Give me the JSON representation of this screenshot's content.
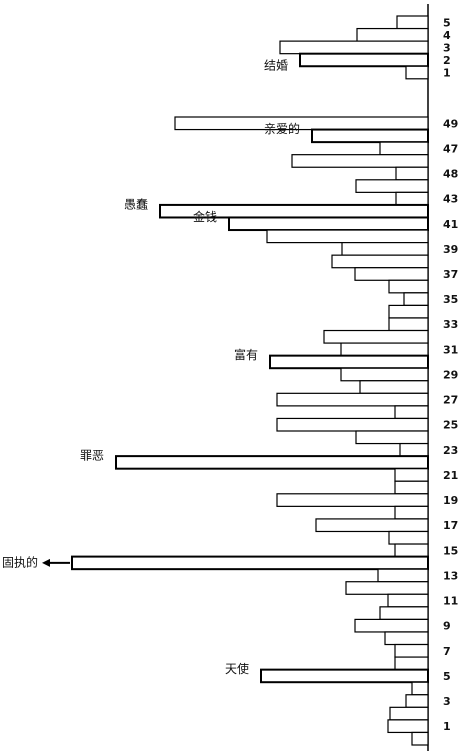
{
  "chart_data": [
    {
      "type": "bar",
      "orientation": "horizontal",
      "color": "#ffffff",
      "categories": [
        "5",
        "4",
        "3",
        "2",
        "1"
      ],
      "values": [
        31,
        71,
        148,
        128,
        22
      ],
      "annotations": [
        null,
        null,
        null,
        "结婚",
        null
      ]
    },
    {
      "type": "bar",
      "orientation": "horizontal",
      "color": "#ffffff",
      "categories": [
        "49",
        null,
        "47",
        null,
        "48",
        null,
        "43",
        null,
        "41",
        null,
        "39",
        null,
        "37",
        null,
        "35",
        null,
        "33",
        null,
        "31",
        null,
        "29",
        null,
        "27",
        null,
        "25",
        null,
        "23",
        null,
        "21",
        null,
        "19",
        null,
        "17",
        null,
        "15",
        null,
        "13",
        null,
        "11",
        null,
        "9",
        null,
        "7",
        null,
        "5",
        null,
        "3",
        null,
        "1",
        null
      ],
      "values": [
        253,
        116,
        48,
        136,
        32,
        72,
        32,
        268,
        199,
        161,
        86,
        96,
        73,
        39,
        24,
        39,
        39,
        104,
        87,
        158,
        87,
        68,
        151,
        33,
        151,
        72,
        28,
        312,
        33,
        33,
        151,
        33,
        112,
        39,
        33,
        356,
        50,
        82,
        40,
        48,
        73,
        43,
        33,
        33,
        167,
        16,
        22,
        38,
        40,
        16
      ],
      "annotations": [
        null,
        "亲爱的",
        null,
        null,
        null,
        null,
        null,
        "愚蠢",
        "金钱",
        null,
        null,
        null,
        null,
        null,
        null,
        null,
        null,
        null,
        null,
        "富有",
        null,
        null,
        null,
        null,
        null,
        null,
        null,
        "罪恶",
        null,
        null,
        null,
        null,
        null,
        null,
        null,
        "固执的",
        null,
        null,
        null,
        null,
        null,
        null,
        null,
        null,
        "天使",
        null,
        null,
        null,
        null,
        null
      ]
    }
  ]
}
